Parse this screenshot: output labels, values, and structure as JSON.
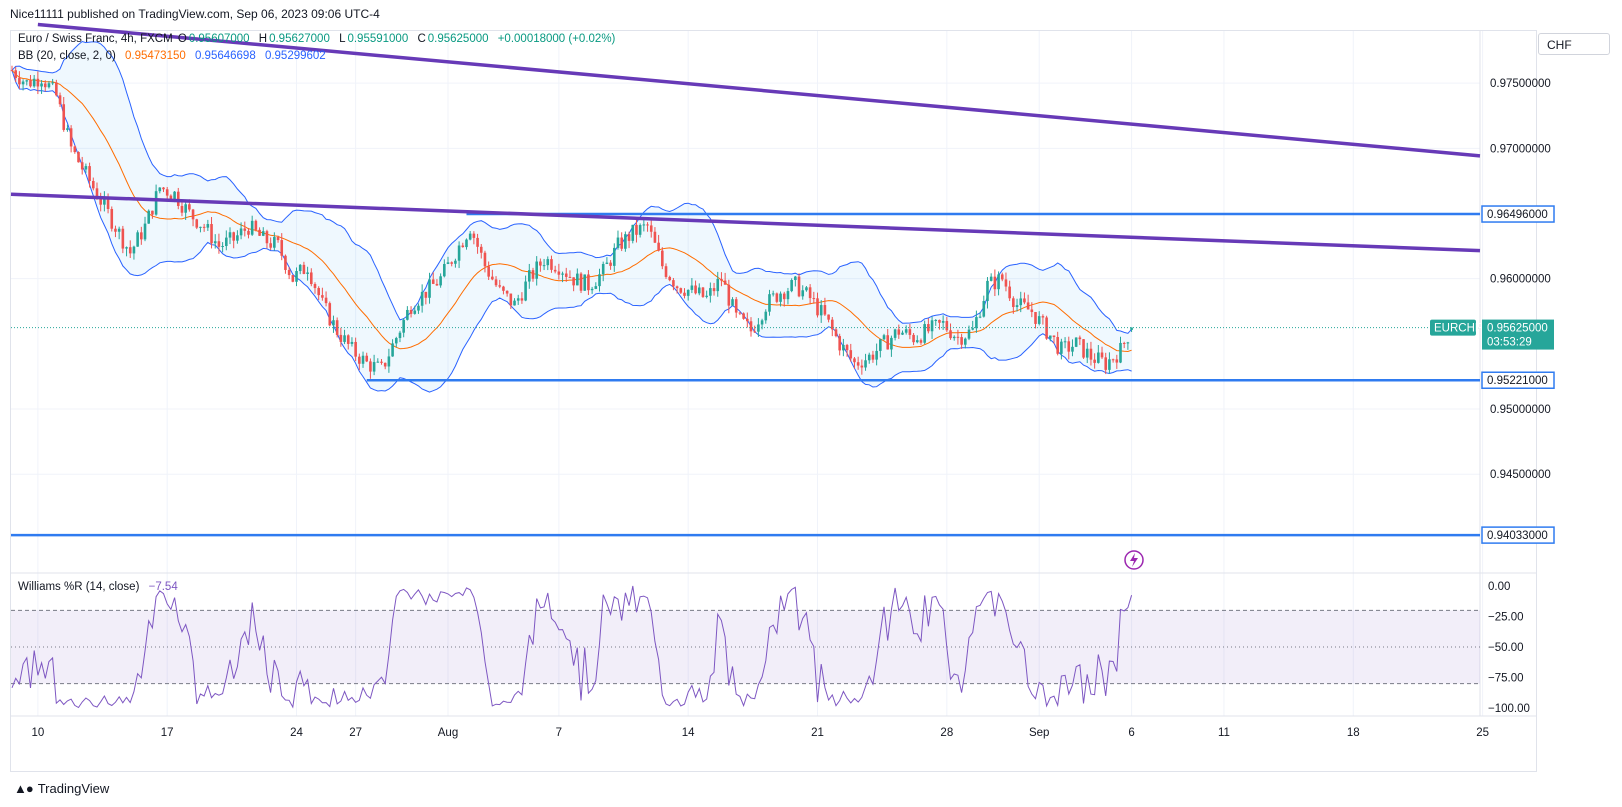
{
  "header": {
    "published": "Nice11111 published on TradingView.com, Sep 06, 2023 09:06 UTC-4"
  },
  "legend": {
    "symbol": "Euro / Swiss Franc, 4h, FXCM",
    "o_label": "O",
    "o_value": "0.95607000",
    "h_label": "H",
    "h_value": "0.95627000",
    "l_label": "L",
    "l_value": "0.95591000",
    "c_label": "C",
    "c_value": "0.95625000",
    "change": "+0.00018000 (+0.02%)",
    "bb_label": "BB (20, close, 2, 0)",
    "bb_basis": "0.95473150",
    "bb_upper": "0.95646698",
    "bb_lower": "0.95299602",
    "wr_label": "Williams %R (14, close)",
    "wr_value": "−7.54"
  },
  "currency_button": "CHF",
  "colors": {
    "up": "#26a69a",
    "down": "#ef5350",
    "bb_band": "#2962ff",
    "bb_basis": "#ff6d00",
    "trendline": "#673ab7",
    "hline": "#2f7bf0",
    "wr_line": "#7e57c2",
    "last_price": "#26a69a"
  },
  "footer": {
    "brand": "TradingView"
  },
  "chart_data": {
    "type": "candlestick",
    "symbol": "EURCHF",
    "interval": "4h",
    "price_axis_ticks": [
      "0.97500000",
      "0.97000000",
      "0.96000000",
      "0.95000000",
      "0.94500000"
    ],
    "price_range": [
      0.9375,
      0.979
    ],
    "horizontal_levels": [
      {
        "value": 0.96496,
        "label": "0.96496000"
      },
      {
        "value": 0.95221,
        "label": "0.95221000"
      },
      {
        "value": 0.94033,
        "label": "0.94033000"
      }
    ],
    "last_price": {
      "label": "EURCHF",
      "value": "0.95625000",
      "countdown": "03:53:29"
    },
    "x_tick_labels": [
      "10",
      "17",
      "24",
      "27",
      "Aug",
      "7",
      "14",
      "21",
      "28",
      "Sep",
      "6",
      "11",
      "18",
      "25"
    ],
    "trendlines": [
      {
        "name": "upper",
        "from": {
          "date": "Jul 10",
          "price": 0.9795
        },
        "to": {
          "date": "Sep 26",
          "price": 0.9693
        }
      },
      {
        "name": "lower",
        "from": {
          "date": "Jul 10",
          "price": 0.9664
        },
        "to": {
          "date": "Sep 26",
          "price": 0.9621
        }
      }
    ],
    "close_path": [
      [
        0,
        0.976
      ],
      [
        4,
        0.975
      ],
      [
        8,
        0.9755
      ],
      [
        12,
        0.974
      ],
      [
        16,
        0.97
      ],
      [
        20,
        0.968
      ],
      [
        24,
        0.966
      ],
      [
        28,
        0.964
      ],
      [
        32,
        0.962
      ],
      [
        36,
        0.964
      ],
      [
        40,
        0.967
      ],
      [
        44,
        0.9665
      ],
      [
        48,
        0.965
      ],
      [
        52,
        0.964
      ],
      [
        56,
        0.9625
      ],
      [
        60,
        0.963
      ],
      [
        64,
        0.964
      ],
      [
        68,
        0.963
      ],
      [
        72,
        0.9625
      ],
      [
        76,
        0.96
      ],
      [
        80,
        0.961
      ],
      [
        84,
        0.958
      ],
      [
        88,
        0.956
      ],
      [
        92,
        0.9545
      ],
      [
        96,
        0.9535
      ],
      [
        100,
        0.953
      ],
      [
        104,
        0.9555
      ],
      [
        108,
        0.958
      ],
      [
        112,
        0.959
      ],
      [
        116,
        0.96
      ],
      [
        120,
        0.962
      ],
      [
        124,
        0.964
      ],
      [
        128,
        0.961
      ],
      [
        132,
        0.959
      ],
      [
        136,
        0.958
      ],
      [
        140,
        0.96
      ],
      [
        144,
        0.9615
      ],
      [
        148,
        0.961
      ],
      [
        152,
        0.96
      ],
      [
        156,
        0.9595
      ],
      [
        160,
        0.9605
      ],
      [
        164,
        0.9625
      ],
      [
        168,
        0.9635
      ],
      [
        172,
        0.964
      ],
      [
        176,
        0.961
      ],
      [
        180,
        0.9595
      ],
      [
        184,
        0.959
      ],
      [
        188,
        0.9585
      ],
      [
        192,
        0.96
      ],
      [
        196,
        0.957
      ],
      [
        200,
        0.956
      ],
      [
        204,
        0.958
      ],
      [
        208,
        0.959
      ],
      [
        212,
        0.9595
      ],
      [
        216,
        0.9585
      ],
      [
        220,
        0.957
      ],
      [
        224,
        0.955
      ],
      [
        228,
        0.9535
      ],
      [
        232,
        0.954
      ],
      [
        236,
        0.955
      ],
      [
        240,
        0.956
      ],
      [
        244,
        0.9555
      ],
      [
        248,
        0.956
      ],
      [
        252,
        0.9565
      ],
      [
        256,
        0.9555
      ],
      [
        260,
        0.956
      ],
      [
        264,
        0.9595
      ],
      [
        268,
        0.96
      ],
      [
        272,
        0.958
      ],
      [
        276,
        0.9575
      ],
      [
        280,
        0.956
      ],
      [
        284,
        0.9545
      ],
      [
        288,
        0.955
      ],
      [
        292,
        0.954
      ],
      [
        296,
        0.9535
      ],
      [
        300,
        0.9545
      ],
      [
        303,
        0.95625
      ]
    ],
    "bollinger_bands": {
      "length": 20,
      "mult": 2,
      "last": {
        "basis": 0.9547315,
        "upper": 0.95646698,
        "lower": 0.95299602
      }
    },
    "williams_r": {
      "length": 14,
      "last": -7.54,
      "axis_ticks": [
        "0.00",
        "−25.00",
        "−50.00",
        "−75.00",
        "−100.00"
      ],
      "levels": [
        -20,
        -50,
        -80
      ],
      "range": [
        -100,
        0
      ]
    }
  }
}
